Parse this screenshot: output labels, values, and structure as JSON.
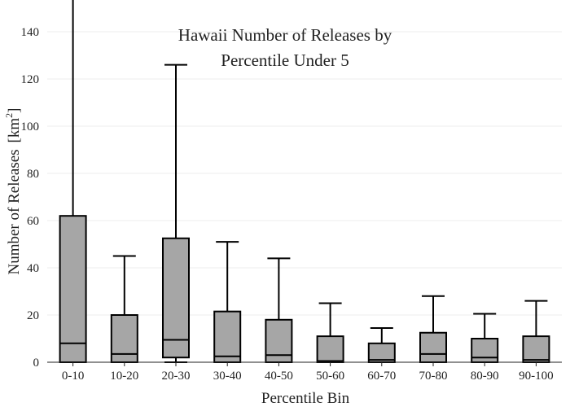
{
  "chart_data": {
    "type": "box",
    "title_lines": [
      "Hawaii Number of Releases by",
      "Percentile Under 5"
    ],
    "xlabel": "Percentile Bin",
    "ylabel": "Number of Releases",
    "ylabel_unit_prefix": "[km",
    "ylabel_unit_sup": "2",
    "ylabel_unit_suffix": "]",
    "ylim": [
      0,
      150
    ],
    "yticks": [
      0,
      20,
      40,
      60,
      80,
      100,
      120,
      140
    ],
    "grid": true,
    "categories": [
      "0-10",
      "10-20",
      "20-30",
      "30-40",
      "40-50",
      "50-60",
      "60-70",
      "70-80",
      "80-90",
      "90-100"
    ],
    "boxes": [
      {
        "category": "0-10",
        "min": 0,
        "q1": 0,
        "median": 8,
        "q3": 62,
        "max": 154
      },
      {
        "category": "10-20",
        "min": 0,
        "q1": 0,
        "median": 3.5,
        "q3": 20,
        "max": 45
      },
      {
        "category": "20-30",
        "min": 0,
        "q1": 2,
        "median": 9.5,
        "q3": 52.5,
        "max": 126
      },
      {
        "category": "30-40",
        "min": 0,
        "q1": 0,
        "median": 2.5,
        "q3": 21.5,
        "max": 51
      },
      {
        "category": "40-50",
        "min": 0,
        "q1": 0,
        "median": 3,
        "q3": 18,
        "max": 44
      },
      {
        "category": "50-60",
        "min": 0,
        "q1": 0,
        "median": 0.5,
        "q3": 11,
        "max": 25
      },
      {
        "category": "60-70",
        "min": 0,
        "q1": 0,
        "median": 1,
        "q3": 8,
        "max": 14.5
      },
      {
        "category": "70-80",
        "min": 0,
        "q1": 0,
        "median": 3.5,
        "q3": 12.5,
        "max": 28
      },
      {
        "category": "80-90",
        "min": 0,
        "q1": 0,
        "median": 2,
        "q3": 10,
        "max": 20.5
      },
      {
        "category": "90-100",
        "min": 0,
        "q1": 0,
        "median": 1,
        "q3": 11,
        "max": 26
      }
    ]
  }
}
